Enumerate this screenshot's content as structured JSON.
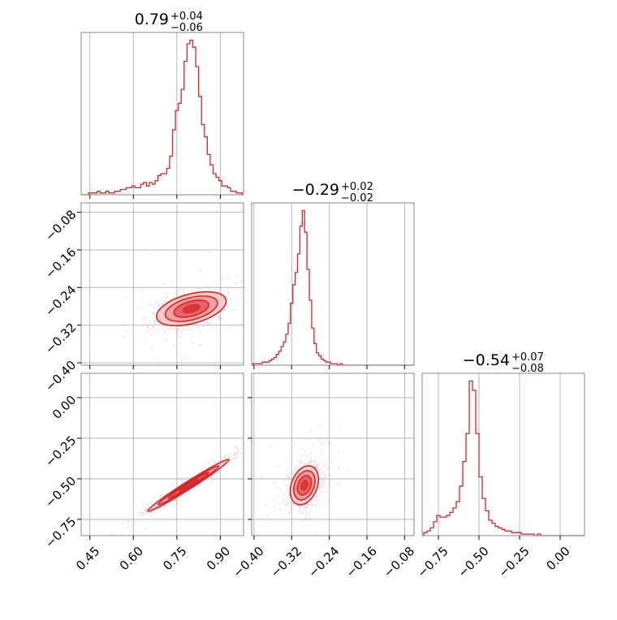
{
  "chart_data": {
    "type": "corner",
    "color": "#d62728",
    "fill_colors": [
      "#f6c9ca",
      "#ee8f92",
      "#e44f55"
    ],
    "grid": true,
    "parameters": [
      {
        "median": "0.79",
        "plus": "+0.04",
        "minus": "−0.06",
        "range": [
          0.42,
          0.98
        ]
      },
      {
        "median": "−0.29",
        "plus": "+0.02",
        "minus": "−0.02",
        "range": [
          -0.405,
          -0.06
        ]
      },
      {
        "median": "−0.54",
        "plus": "+0.07",
        "minus": "−0.08",
        "range": [
          -0.85,
          0.15
        ]
      }
    ],
    "ticks": [
      [
        {
          "v": 0.45,
          "label": "0.45"
        },
        {
          "v": 0.6,
          "label": "0.60"
        },
        {
          "v": 0.75,
          "label": "0.75"
        },
        {
          "v": 0.9,
          "label": "0.90"
        }
      ],
      [
        {
          "v": -0.4,
          "label": "−0.40"
        },
        {
          "v": -0.32,
          "label": "−0.32"
        },
        {
          "v": -0.24,
          "label": "−0.24"
        },
        {
          "v": -0.16,
          "label": "−0.16"
        },
        {
          "v": -0.08,
          "label": "−0.08"
        }
      ],
      [
        {
          "v": -0.75,
          "label": "−0.75"
        },
        {
          "v": -0.5,
          "label": "−0.50"
        },
        {
          "v": -0.25,
          "label": "−0.25"
        },
        {
          "v": 0.0,
          "label": "0.00"
        }
      ]
    ],
    "histograms": [
      {
        "x": [
          0.42,
          0.43,
          0.44,
          0.45,
          0.46,
          0.47,
          0.48,
          0.49,
          0.5,
          0.51,
          0.52,
          0.53,
          0.54,
          0.55,
          0.56,
          0.57,
          0.58,
          0.59,
          0.6,
          0.61,
          0.62,
          0.63,
          0.64,
          0.65,
          0.66,
          0.67,
          0.68,
          0.69,
          0.7,
          0.71,
          0.72,
          0.73,
          0.74,
          0.75,
          0.76,
          0.77,
          0.78,
          0.79,
          0.8,
          0.81,
          0.82,
          0.83,
          0.84,
          0.85,
          0.86,
          0.87,
          0.88,
          0.89,
          0.9,
          0.91,
          0.92,
          0.93,
          0.94,
          0.95,
          0.96,
          0.97,
          0.98
        ],
        "y": [
          0,
          0,
          0,
          1,
          1,
          1,
          2,
          1,
          1,
          2,
          1,
          1,
          2,
          2,
          3,
          3,
          4,
          4,
          5,
          4,
          4,
          6,
          7,
          5,
          7,
          6,
          8,
          11,
          12,
          12,
          15,
          22,
          37,
          48,
          52,
          60,
          76,
          86,
          88,
          84,
          73,
          56,
          40,
          33,
          23,
          17,
          12,
          10,
          8,
          5,
          5,
          4,
          2,
          2,
          1,
          1,
          0
        ]
      },
      {
        "x": [
          -0.405,
          -0.4,
          -0.395,
          -0.39,
          -0.385,
          -0.38,
          -0.375,
          -0.37,
          -0.365,
          -0.36,
          -0.355,
          -0.35,
          -0.345,
          -0.34,
          -0.335,
          -0.33,
          -0.325,
          -0.32,
          -0.315,
          -0.31,
          -0.305,
          -0.3,
          -0.295,
          -0.29,
          -0.285,
          -0.28,
          -0.275,
          -0.27,
          -0.265,
          -0.26,
          -0.255,
          -0.25,
          -0.245,
          -0.24,
          -0.235,
          -0.23,
          -0.225,
          -0.22,
          -0.215,
          -0.21,
          -0.205,
          -0.2,
          -0.195,
          -0.19,
          -0.185,
          -0.18,
          -0.175,
          -0.17,
          -0.165,
          -0.16,
          -0.155,
          -0.15,
          -0.145,
          -0.14,
          -0.135,
          -0.13,
          -0.125,
          -0.12,
          -0.115,
          -0.11,
          -0.105,
          -0.1,
          -0.095,
          -0.09,
          -0.085,
          -0.08,
          -0.075,
          -0.07,
          -0.065,
          -0.06
        ],
        "y": [
          0,
          1,
          1,
          1,
          1,
          2,
          2,
          2,
          3,
          4,
          5,
          7,
          9,
          12,
          15,
          20,
          27,
          40,
          52,
          60,
          72,
          90,
          100,
          86,
          62,
          42,
          24,
          14,
          8,
          6,
          4,
          3,
          2,
          2,
          1,
          1,
          1,
          0,
          1,
          0,
          0,
          0,
          0,
          0,
          0,
          0,
          0,
          0,
          0,
          0,
          0,
          0,
          0,
          0,
          0,
          0,
          0,
          0,
          0,
          0,
          0,
          0,
          0,
          0,
          0,
          0,
          0,
          0,
          0,
          0
        ]
      },
      {
        "x": [
          -0.85,
          -0.83,
          -0.81,
          -0.79,
          -0.77,
          -0.75,
          -0.73,
          -0.71,
          -0.69,
          -0.67,
          -0.65,
          -0.63,
          -0.61,
          -0.59,
          -0.57,
          -0.55,
          -0.53,
          -0.51,
          -0.49,
          -0.47,
          -0.45,
          -0.43,
          -0.41,
          -0.39,
          -0.37,
          -0.35,
          -0.33,
          -0.31,
          -0.29,
          -0.27,
          -0.25,
          -0.23,
          -0.21,
          -0.19,
          -0.17,
          -0.15,
          -0.13,
          -0.11,
          -0.09,
          -0.07,
          -0.05,
          -0.03,
          -0.01,
          0.01,
          0.03,
          0.05,
          0.07,
          0.09,
          0.11,
          0.13,
          0.15
        ],
        "y": [
          0,
          2,
          3,
          5,
          9,
          13,
          12,
          12,
          13,
          15,
          18,
          22,
          32,
          48,
          66,
          100,
          94,
          66,
          38,
          24,
          16,
          10,
          8,
          6,
          5,
          4,
          3,
          3,
          2,
          2,
          2,
          1,
          1,
          1,
          1,
          0,
          1,
          0,
          0,
          0,
          0,
          0,
          0,
          0,
          0,
          0,
          0,
          0,
          0,
          0,
          0
        ]
      }
    ],
    "pairs": [
      {
        "i": 0,
        "j": 1,
        "center": [
          0.8,
          -0.285
        ],
        "sd": [
          0.06,
          0.018
        ],
        "rho": 0.45
      },
      {
        "i": 0,
        "j": 2,
        "center": [
          0.79,
          -0.54
        ],
        "sd": [
          0.07,
          0.08
        ],
        "rho": 0.985
      },
      {
        "i": 1,
        "j": 2,
        "center": [
          -0.293,
          -0.54
        ],
        "sd": [
          0.015,
          0.06
        ],
        "rho": 0.3
      }
    ]
  }
}
